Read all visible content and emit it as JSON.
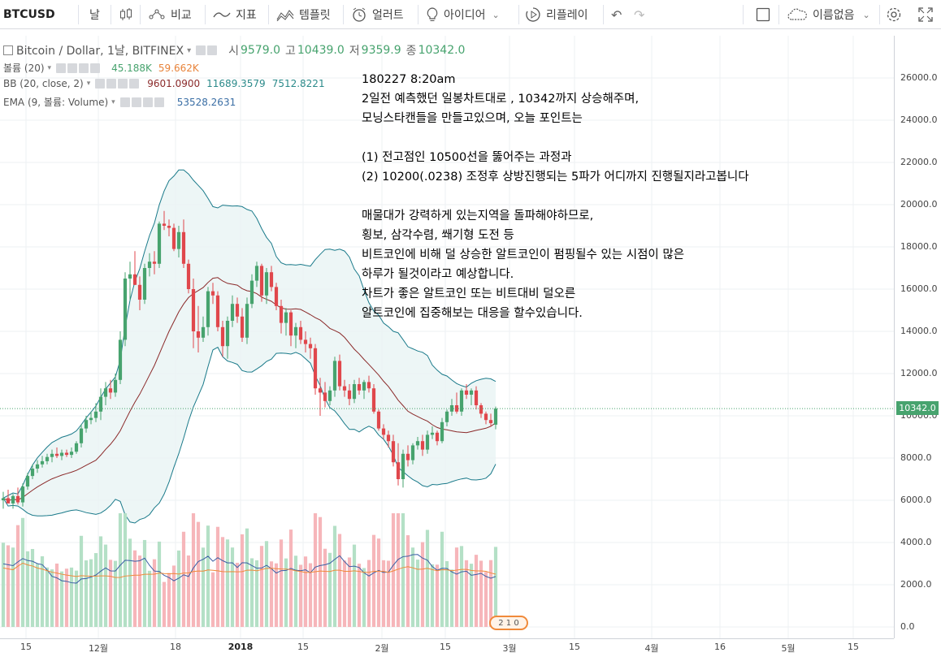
{
  "toolbar": {
    "symbol": "BTCUSD",
    "interval": "날",
    "compare": "비교",
    "indicators": "지표",
    "templates": "템플릿",
    "alerts": "얼러트",
    "ideas": "아이디어",
    "replay": "리플레이",
    "layout_name": "이름없음"
  },
  "legend": {
    "main": {
      "title": "Bitcoin / Dollar, 1날, BITFINEX",
      "open_label": "시",
      "open": "9579.0",
      "high_label": "고",
      "high": "10439.0",
      "low_label": "저",
      "low": "9359.9",
      "close_label": "종",
      "close": "10342.0"
    },
    "volume": {
      "title": "볼륨 (20)",
      "v1": "45.188K",
      "v2": "59.662K"
    },
    "bb": {
      "title": "BB (20, close, 2)",
      "basis": "9601.0900",
      "upper": "11689.3579",
      "lower": "7512.8221"
    },
    "ema": {
      "title": "EMA (9, 볼륨: Volume)",
      "value": "53528.2631"
    }
  },
  "annotation": [
    "180227 8:20am",
    "2일전 예측했던 일봉차트대로 , 10342까지 상승해주며,",
    "모닝스타캔들을 만들고있으며, 오늘 포인트는",
    "",
    "(1) 전고점인 10500선을 뚫어주는 과정과",
    "(2) 10200(.0238) 조정후 상방진행되는 5파가 어디까지 진행될지라고봅니다",
    "",
    "매물대가 강력하게 있는지역을 돌파해야하므로,",
    "횡보, 삼각수렴, 쐐기형 도전 등",
    "비트코인에 비해 덜 상승한 알트코인이 펌핑될수 있는 시점이 많은",
    "하루가 될것이라고 예상합니다.",
    "차트가 좋은 알트코인 또는 비트대비 덜오른",
    "알트코인에 집중해보는 대응을 할수있습니다."
  ],
  "price_axis": {
    "current": "10342.0",
    "ticks": [
      "26000.0",
      "24000.0",
      "22000.0",
      "20000.0",
      "18000.0",
      "16000.0",
      "14000.0",
      "12000.0",
      "10000.0",
      "8000.0",
      "6000.0",
      "4000.0",
      "2000.0",
      "0.0"
    ]
  },
  "time_axis": {
    "ticks": [
      "15",
      "12월",
      "18",
      "2018",
      "15",
      "2월",
      "15",
      "3월",
      "15",
      "4월",
      "16",
      "5월",
      "15"
    ]
  },
  "badge": "2 1 0",
  "colors": {
    "up": "#47a36e",
    "down": "#e0474c",
    "bb_band": "#1a7a8a",
    "bb_basis": "#8b2a2a",
    "vol_up": "#b4e0c6",
    "vol_down": "#f6b6ba"
  },
  "chart_data": {
    "type": "candlestick",
    "title": "Bitcoin / Dollar, 1날, BITFINEX",
    "ylim": [
      0,
      27000
    ],
    "candles": [
      {
        "o": 6000,
        "h": 6400,
        "l": 5600,
        "c": 6100
      },
      {
        "o": 6100,
        "h": 6500,
        "l": 5900,
        "c": 5850
      },
      {
        "o": 5850,
        "h": 6300,
        "l": 5600,
        "c": 6200
      },
      {
        "o": 6200,
        "h": 6600,
        "l": 5800,
        "c": 5900
      },
      {
        "o": 5900,
        "h": 6800,
        "l": 5700,
        "c": 6650
      },
      {
        "o": 6650,
        "h": 7300,
        "l": 6500,
        "c": 7150
      },
      {
        "o": 7150,
        "h": 7700,
        "l": 7000,
        "c": 7500
      },
      {
        "o": 7500,
        "h": 7900,
        "l": 7300,
        "c": 7700
      },
      {
        "o": 7700,
        "h": 8100,
        "l": 7550,
        "c": 7850
      },
      {
        "o": 7850,
        "h": 8200,
        "l": 7700,
        "c": 8050
      },
      {
        "o": 8050,
        "h": 8400,
        "l": 7800,
        "c": 8200
      },
      {
        "o": 8200,
        "h": 8500,
        "l": 8000,
        "c": 8100
      },
      {
        "o": 8100,
        "h": 8400,
        "l": 7900,
        "c": 8250
      },
      {
        "o": 8250,
        "h": 8400,
        "l": 8050,
        "c": 8150
      },
      {
        "o": 8150,
        "h": 8500,
        "l": 8000,
        "c": 8300
      },
      {
        "o": 8300,
        "h": 8800,
        "l": 8200,
        "c": 8700
      },
      {
        "o": 8700,
        "h": 9600,
        "l": 8500,
        "c": 9400
      },
      {
        "o": 9400,
        "h": 10000,
        "l": 9200,
        "c": 9800
      },
      {
        "o": 9800,
        "h": 10200,
        "l": 9600,
        "c": 9900
      },
      {
        "o": 9900,
        "h": 10600,
        "l": 9700,
        "c": 10200
      },
      {
        "o": 10200,
        "h": 11300,
        "l": 9800,
        "c": 10900
      },
      {
        "o": 10900,
        "h": 11600,
        "l": 10500,
        "c": 11300
      },
      {
        "o": 11300,
        "h": 11700,
        "l": 10800,
        "c": 11100
      },
      {
        "o": 11100,
        "h": 12000,
        "l": 10900,
        "c": 11700
      },
      {
        "o": 11700,
        "h": 14000,
        "l": 11500,
        "c": 13600
      },
      {
        "o": 13600,
        "h": 16800,
        "l": 13300,
        "c": 16500
      },
      {
        "o": 16500,
        "h": 17300,
        "l": 15500,
        "c": 16700
      },
      {
        "o": 16700,
        "h": 17800,
        "l": 16200,
        "c": 16200
      },
      {
        "o": 16200,
        "h": 16600,
        "l": 15000,
        "c": 15500
      },
      {
        "o": 15500,
        "h": 17200,
        "l": 15300,
        "c": 17000
      },
      {
        "o": 17000,
        "h": 17700,
        "l": 16600,
        "c": 17300
      },
      {
        "o": 17300,
        "h": 17800,
        "l": 16700,
        "c": 17200
      },
      {
        "o": 17200,
        "h": 19200,
        "l": 17000,
        "c": 19100
      },
      {
        "o": 19100,
        "h": 19700,
        "l": 18800,
        "c": 19000
      },
      {
        "o": 19000,
        "h": 19300,
        "l": 18500,
        "c": 18900
      },
      {
        "o": 18900,
        "h": 19100,
        "l": 17800,
        "c": 17900
      },
      {
        "o": 17900,
        "h": 19000,
        "l": 17500,
        "c": 18700
      },
      {
        "o": 18700,
        "h": 19300,
        "l": 17000,
        "c": 17200
      },
      {
        "o": 17200,
        "h": 17400,
        "l": 15800,
        "c": 16000
      },
      {
        "o": 16000,
        "h": 16500,
        "l": 13200,
        "c": 14000
      },
      {
        "o": 14000,
        "h": 15200,
        "l": 13000,
        "c": 13700
      },
      {
        "o": 13700,
        "h": 14700,
        "l": 13500,
        "c": 14200
      },
      {
        "o": 14200,
        "h": 16100,
        "l": 13800,
        "c": 15900
      },
      {
        "o": 15900,
        "h": 16300,
        "l": 15300,
        "c": 15700
      },
      {
        "o": 15700,
        "h": 15900,
        "l": 14000,
        "c": 14200
      },
      {
        "o": 14200,
        "h": 14500,
        "l": 12800,
        "c": 13300
      },
      {
        "o": 13300,
        "h": 14700,
        "l": 12700,
        "c": 14500
      },
      {
        "o": 14500,
        "h": 15700,
        "l": 14200,
        "c": 15300
      },
      {
        "o": 15300,
        "h": 15600,
        "l": 14400,
        "c": 14700
      },
      {
        "o": 14700,
        "h": 15100,
        "l": 13500,
        "c": 13700
      },
      {
        "o": 13700,
        "h": 15600,
        "l": 13400,
        "c": 15300
      },
      {
        "o": 15300,
        "h": 16700,
        "l": 15100,
        "c": 16400
      },
      {
        "o": 16400,
        "h": 17300,
        "l": 16100,
        "c": 17100
      },
      {
        "o": 17100,
        "h": 17200,
        "l": 15400,
        "c": 15700
      },
      {
        "o": 15700,
        "h": 17000,
        "l": 15300,
        "c": 16800
      },
      {
        "o": 16800,
        "h": 17100,
        "l": 15900,
        "c": 16100
      },
      {
        "o": 16100,
        "h": 16300,
        "l": 15000,
        "c": 15200
      },
      {
        "o": 15200,
        "h": 15500,
        "l": 13900,
        "c": 14400
      },
      {
        "o": 14400,
        "h": 15100,
        "l": 13800,
        "c": 14900
      },
      {
        "o": 14900,
        "h": 15000,
        "l": 13300,
        "c": 13800
      },
      {
        "o": 13800,
        "h": 14400,
        "l": 13200,
        "c": 14200
      },
      {
        "o": 14200,
        "h": 14500,
        "l": 13400,
        "c": 13600
      },
      {
        "o": 13600,
        "h": 14000,
        "l": 13000,
        "c": 13400
      },
      {
        "o": 13400,
        "h": 13700,
        "l": 12700,
        "c": 13200
      },
      {
        "o": 13200,
        "h": 13400,
        "l": 11000,
        "c": 11300
      },
      {
        "o": 11300,
        "h": 11800,
        "l": 10000,
        "c": 11100
      },
      {
        "o": 11100,
        "h": 11600,
        "l": 10400,
        "c": 10700
      },
      {
        "o": 10700,
        "h": 11400,
        "l": 10500,
        "c": 11200
      },
      {
        "o": 11200,
        "h": 12800,
        "l": 10900,
        "c": 12600
      },
      {
        "o": 12600,
        "h": 12900,
        "l": 11200,
        "c": 11400
      },
      {
        "o": 11400,
        "h": 11700,
        "l": 10900,
        "c": 11200
      },
      {
        "o": 11200,
        "h": 11500,
        "l": 10500,
        "c": 10800
      },
      {
        "o": 10800,
        "h": 11700,
        "l": 10600,
        "c": 11500
      },
      {
        "o": 11500,
        "h": 11800,
        "l": 11000,
        "c": 11200
      },
      {
        "o": 11200,
        "h": 11700,
        "l": 10800,
        "c": 11600
      },
      {
        "o": 11600,
        "h": 11900,
        "l": 11100,
        "c": 11300
      },
      {
        "o": 11300,
        "h": 11500,
        "l": 10100,
        "c": 10200
      },
      {
        "o": 10200,
        "h": 10300,
        "l": 9300,
        "c": 9400
      },
      {
        "o": 9400,
        "h": 9600,
        "l": 8900,
        "c": 9100
      },
      {
        "o": 9100,
        "h": 9300,
        "l": 8500,
        "c": 8800
      },
      {
        "o": 8800,
        "h": 9100,
        "l": 7600,
        "c": 7800
      },
      {
        "o": 7800,
        "h": 8700,
        "l": 6700,
        "c": 7000
      },
      {
        "o": 7000,
        "h": 8400,
        "l": 6600,
        "c": 8200
      },
      {
        "o": 8200,
        "h": 8600,
        "l": 7600,
        "c": 7900
      },
      {
        "o": 7900,
        "h": 8700,
        "l": 7700,
        "c": 8600
      },
      {
        "o": 8600,
        "h": 9000,
        "l": 8400,
        "c": 8800
      },
      {
        "o": 8800,
        "h": 9100,
        "l": 8100,
        "c": 8400
      },
      {
        "o": 8400,
        "h": 9300,
        "l": 8200,
        "c": 9100
      },
      {
        "o": 9100,
        "h": 9500,
        "l": 8900,
        "c": 9200
      },
      {
        "o": 9200,
        "h": 9300,
        "l": 8600,
        "c": 8800
      },
      {
        "o": 8800,
        "h": 9900,
        "l": 8700,
        "c": 9700
      },
      {
        "o": 9700,
        "h": 10300,
        "l": 9500,
        "c": 10200
      },
      {
        "o": 10200,
        "h": 10800,
        "l": 10000,
        "c": 10500
      },
      {
        "o": 10500,
        "h": 11100,
        "l": 10100,
        "c": 10200
      },
      {
        "o": 10200,
        "h": 11300,
        "l": 10000,
        "c": 11200
      },
      {
        "o": 11200,
        "h": 11500,
        "l": 10800,
        "c": 11000
      },
      {
        "o": 11000,
        "h": 11300,
        "l": 10500,
        "c": 11200
      },
      {
        "o": 11200,
        "h": 11400,
        "l": 10300,
        "c": 10500
      },
      {
        "o": 10500,
        "h": 10600,
        "l": 9900,
        "c": 10100
      },
      {
        "o": 10100,
        "h": 10200,
        "l": 9600,
        "c": 9800
      },
      {
        "o": 9800,
        "h": 10100,
        "l": 9500,
        "c": 9650
      },
      {
        "o": 9579,
        "h": 10439,
        "l": 9359.9,
        "c": 10342
      }
    ]
  }
}
